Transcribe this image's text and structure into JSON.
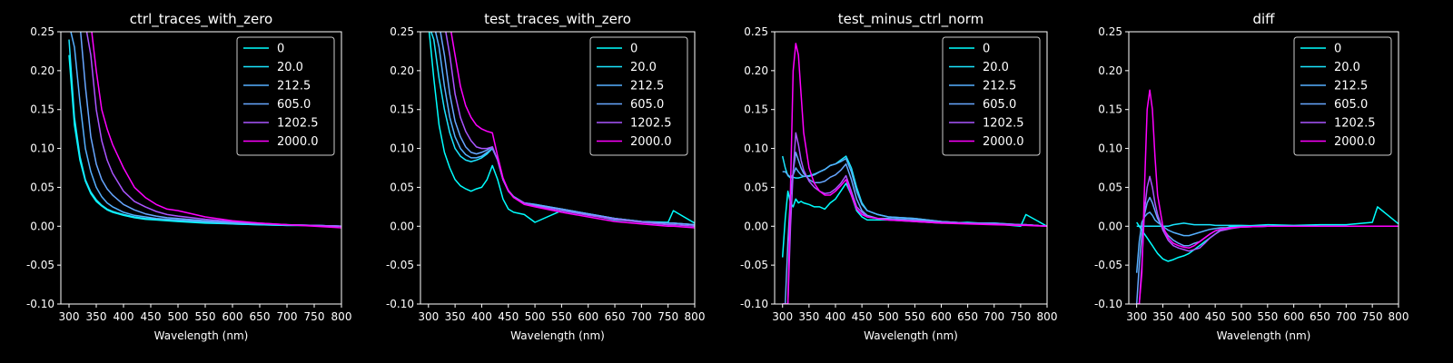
{
  "figure": {
    "background": "#000000",
    "foreground": "#ffffff"
  },
  "legend_labels": [
    "0",
    "20.0",
    "212.5",
    "605.0",
    "1202.5",
    "2000.0"
  ],
  "series_colors": [
    "#00ffff",
    "#1ae5ff",
    "#55b0ff",
    "#67a6ff",
    "#aa55ff",
    "#ff00ff"
  ],
  "chart_data": [
    {
      "type": "line",
      "title": "ctrl_traces_with_zero",
      "xlabel": "Wavelength (nm)",
      "ylabel": "",
      "xlim": [
        285,
        800
      ],
      "ylim": [
        -0.1,
        0.25
      ],
      "xticks": [
        300,
        350,
        400,
        450,
        500,
        550,
        600,
        650,
        700,
        750,
        800
      ],
      "yticks": [
        -0.1,
        -0.05,
        0.0,
        0.05,
        0.1,
        0.15,
        0.2,
        0.25
      ],
      "legend_position": "top-right",
      "x": [
        300,
        310,
        320,
        330,
        340,
        350,
        360,
        370,
        380,
        400,
        420,
        440,
        460,
        480,
        500,
        550,
        600,
        650,
        700,
        750,
        800
      ],
      "series": [
        {
          "name": "0",
          "values": [
            0.22,
            0.13,
            0.085,
            0.058,
            0.042,
            0.032,
            0.026,
            0.021,
            0.018,
            0.014,
            0.011,
            0.009,
            0.008,
            0.007,
            0.006,
            0.004,
            0.003,
            0.002,
            0.001,
            0.001,
            0.0
          ]
        },
        {
          "name": "20.0",
          "values": [
            0.24,
            0.14,
            0.09,
            0.06,
            0.044,
            0.034,
            0.027,
            0.022,
            0.019,
            0.015,
            0.012,
            0.01,
            0.009,
            0.008,
            0.007,
            0.005,
            0.003,
            0.002,
            0.001,
            0.001,
            0.0
          ]
        },
        {
          "name": "212.5",
          "values": [
            0.26,
            0.23,
            0.16,
            0.1,
            0.07,
            0.05,
            0.038,
            0.03,
            0.025,
            0.018,
            0.014,
            0.012,
            0.01,
            0.009,
            0.008,
            0.006,
            0.004,
            0.003,
            0.002,
            0.001,
            0.0
          ]
        },
        {
          "name": "605.0",
          "values": [
            0.26,
            0.26,
            0.26,
            0.18,
            0.115,
            0.08,
            0.06,
            0.048,
            0.04,
            0.028,
            0.021,
            0.016,
            0.013,
            0.011,
            0.01,
            0.007,
            0.005,
            0.003,
            0.002,
            0.001,
            0.0
          ]
        },
        {
          "name": "1202.5",
          "values": [
            0.26,
            0.26,
            0.26,
            0.26,
            0.22,
            0.15,
            0.11,
            0.085,
            0.068,
            0.045,
            0.032,
            0.025,
            0.019,
            0.015,
            0.013,
            0.009,
            0.006,
            0.004,
            0.002,
            0.001,
            0.0
          ]
        },
        {
          "name": "2000.0",
          "values": [
            0.26,
            0.26,
            0.26,
            0.26,
            0.26,
            0.2,
            0.15,
            0.125,
            0.105,
            0.075,
            0.05,
            0.037,
            0.028,
            0.022,
            0.02,
            0.012,
            0.007,
            0.004,
            0.002,
            0.0,
            -0.002
          ]
        }
      ]
    },
    {
      "type": "line",
      "title": "test_traces_with_zero",
      "xlabel": "Wavelength (nm)",
      "ylabel": "",
      "xlim": [
        285,
        800
      ],
      "ylim": [
        -0.1,
        0.25
      ],
      "xticks": [
        300,
        350,
        400,
        450,
        500,
        550,
        600,
        650,
        700,
        750,
        800
      ],
      "yticks": [
        -0.1,
        -0.05,
        0.0,
        0.05,
        0.1,
        0.15,
        0.2,
        0.25
      ],
      "legend_position": "top-right",
      "x": [
        300,
        310,
        320,
        330,
        340,
        350,
        360,
        370,
        380,
        390,
        400,
        410,
        420,
        430,
        440,
        450,
        460,
        480,
        500,
        550,
        600,
        650,
        700,
        750,
        760,
        800
      ],
      "series": [
        {
          "name": "0",
          "values": [
            0.26,
            0.19,
            0.13,
            0.095,
            0.075,
            0.06,
            0.052,
            0.048,
            0.045,
            0.048,
            0.05,
            0.06,
            0.078,
            0.06,
            0.035,
            0.022,
            0.018,
            0.015,
            0.005,
            0.02,
            0.015,
            0.008,
            0.006,
            0.005,
            0.02,
            0.004
          ]
        },
        {
          "name": "20.0",
          "values": [
            0.26,
            0.24,
            0.19,
            0.15,
            0.12,
            0.1,
            0.09,
            0.085,
            0.083,
            0.085,
            0.088,
            0.093,
            0.1,
            0.085,
            0.06,
            0.045,
            0.038,
            0.03,
            0.028,
            0.022,
            0.016,
            0.01,
            0.006,
            0.004,
            0.004,
            0.002
          ]
        },
        {
          "name": "212.5",
          "values": [
            0.26,
            0.26,
            0.23,
            0.18,
            0.14,
            0.115,
            0.1,
            0.092,
            0.088,
            0.088,
            0.09,
            0.095,
            0.1,
            0.085,
            0.06,
            0.046,
            0.038,
            0.03,
            0.028,
            0.022,
            0.016,
            0.01,
            0.006,
            0.004,
            0.004,
            0.002
          ]
        },
        {
          "name": "605.0",
          "values": [
            0.26,
            0.26,
            0.26,
            0.22,
            0.17,
            0.135,
            0.115,
            0.102,
            0.095,
            0.093,
            0.095,
            0.098,
            0.102,
            0.085,
            0.06,
            0.046,
            0.038,
            0.03,
            0.027,
            0.022,
            0.016,
            0.01,
            0.006,
            0.004,
            0.004,
            0.002
          ]
        },
        {
          "name": "1202.5",
          "values": [
            0.26,
            0.26,
            0.26,
            0.26,
            0.22,
            0.17,
            0.14,
            0.122,
            0.11,
            0.102,
            0.1,
            0.1,
            0.102,
            0.085,
            0.06,
            0.045,
            0.037,
            0.03,
            0.026,
            0.02,
            0.014,
            0.009,
            0.005,
            0.002,
            0.002,
            0.0
          ]
        },
        {
          "name": "2000.0",
          "values": [
            0.26,
            0.26,
            0.26,
            0.26,
            0.26,
            0.22,
            0.18,
            0.155,
            0.14,
            0.13,
            0.125,
            0.122,
            0.12,
            0.09,
            0.062,
            0.046,
            0.037,
            0.028,
            0.025,
            0.018,
            0.012,
            0.006,
            0.003,
            0.0,
            0.0,
            -0.002
          ]
        }
      ]
    },
    {
      "type": "line",
      "title": "test_minus_ctrl_norm",
      "xlabel": "Wavelength (nm)",
      "ylabel": "",
      "xlim": [
        285,
        800
      ],
      "ylim": [
        -0.1,
        0.25
      ],
      "xticks": [
        300,
        350,
        400,
        450,
        500,
        550,
        600,
        650,
        700,
        750,
        800
      ],
      "yticks": [
        -0.1,
        -0.05,
        0.0,
        0.05,
        0.1,
        0.15,
        0.2,
        0.25
      ],
      "legend_position": "top-right",
      "x": [
        300,
        305,
        310,
        315,
        320,
        325,
        330,
        335,
        340,
        350,
        360,
        370,
        380,
        390,
        400,
        410,
        420,
        430,
        440,
        450,
        460,
        480,
        500,
        550,
        600,
        650,
        700,
        750,
        760,
        800
      ],
      "series": [
        {
          "name": "0",
          "values": [
            -0.04,
            0.01,
            0.045,
            0.03,
            0.025,
            0.035,
            0.03,
            0.032,
            0.03,
            0.028,
            0.025,
            0.025,
            0.022,
            0.03,
            0.035,
            0.045,
            0.055,
            0.04,
            0.02,
            0.012,
            0.008,
            0.008,
            0.008,
            0.006,
            0.004,
            0.005,
            0.003,
            0.0,
            0.015,
            0.0
          ]
        },
        {
          "name": "20.0",
          "values": [
            0.09,
            0.075,
            0.065,
            0.062,
            0.063,
            0.062,
            0.062,
            0.063,
            0.064,
            0.065,
            0.067,
            0.07,
            0.073,
            0.078,
            0.08,
            0.085,
            0.09,
            0.075,
            0.05,
            0.03,
            0.02,
            0.015,
            0.012,
            0.01,
            0.006,
            0.004,
            0.004,
            0.002,
            0.002,
            0.0
          ]
        },
        {
          "name": "212.5",
          "values": [
            0.07,
            0.07,
            0.066,
            0.063,
            0.066,
            0.075,
            0.07,
            0.066,
            0.064,
            0.064,
            0.066,
            0.07,
            0.073,
            0.078,
            0.08,
            0.083,
            0.087,
            0.07,
            0.045,
            0.028,
            0.02,
            0.015,
            0.012,
            0.01,
            0.006,
            0.004,
            0.004,
            0.002,
            0.002,
            0.0
          ]
        },
        {
          "name": "605.0",
          "values": [
            -0.1,
            -0.1,
            -0.02,
            0.04,
            0.07,
            0.095,
            0.085,
            0.075,
            0.068,
            0.06,
            0.056,
            0.056,
            0.058,
            0.063,
            0.066,
            0.072,
            0.08,
            0.06,
            0.035,
            0.02,
            0.014,
            0.01,
            0.01,
            0.008,
            0.006,
            0.004,
            0.003,
            0.002,
            0.002,
            0.0
          ]
        },
        {
          "name": "1202.5",
          "values": [
            -0.1,
            -0.1,
            -0.1,
            0.0,
            0.07,
            0.12,
            0.105,
            0.085,
            0.072,
            0.058,
            0.05,
            0.045,
            0.042,
            0.043,
            0.048,
            0.055,
            0.065,
            0.045,
            0.025,
            0.018,
            0.012,
            0.01,
            0.008,
            0.007,
            0.005,
            0.004,
            0.003,
            0.002,
            0.002,
            0.0
          ]
        },
        {
          "name": "2000.0",
          "values": [
            -0.1,
            -0.1,
            -0.1,
            0.05,
            0.2,
            0.235,
            0.22,
            0.17,
            0.12,
            0.075,
            0.055,
            0.045,
            0.04,
            0.04,
            0.045,
            0.052,
            0.06,
            0.04,
            0.022,
            0.015,
            0.012,
            0.01,
            0.008,
            0.006,
            0.004,
            0.003,
            0.002,
            0.001,
            0.001,
            0.0
          ]
        }
      ]
    },
    {
      "type": "line",
      "title": "diff",
      "xlabel": "Wavelength (nm)",
      "ylabel": "",
      "xlim": [
        285,
        800
      ],
      "ylim": [
        -0.1,
        0.25
      ],
      "xticks": [
        300,
        350,
        400,
        450,
        500,
        550,
        600,
        650,
        700,
        750,
        800
      ],
      "yticks": [
        -0.1,
        -0.05,
        0.0,
        0.05,
        0.1,
        0.15,
        0.2,
        0.25
      ],
      "legend_position": "top-right",
      "x": [
        300,
        305,
        310,
        315,
        320,
        325,
        330,
        335,
        340,
        350,
        360,
        370,
        380,
        390,
        400,
        410,
        420,
        430,
        440,
        450,
        460,
        480,
        500,
        550,
        600,
        650,
        700,
        750,
        760,
        800
      ],
      "series": [
        {
          "name": "0",
          "values": [
            0.005,
            0.0,
            -0.005,
            -0.01,
            -0.015,
            -0.02,
            -0.025,
            -0.03,
            -0.035,
            -0.042,
            -0.045,
            -0.043,
            -0.04,
            -0.038,
            -0.035,
            -0.03,
            -0.025,
            -0.02,
            -0.015,
            -0.01,
            -0.005,
            0.0,
            0.0,
            0.002,
            0.001,
            0.002,
            0.002,
            0.005,
            0.025,
            0.003
          ]
        },
        {
          "name": "20.0",
          "values": [
            0.0,
            0.0,
            0.0,
            0.0,
            0.0,
            0.0,
            0.0,
            0.0,
            0.0,
            0.0,
            0.0,
            0.002,
            0.003,
            0.004,
            0.003,
            0.002,
            0.002,
            0.002,
            0.002,
            0.001,
            0.001,
            0.001,
            0.001,
            0.0,
            0.0,
            0.0,
            0.0,
            0.0,
            0.0,
            0.0
          ]
        },
        {
          "name": "212.5",
          "values": [
            -0.06,
            -0.02,
            0.005,
            0.012,
            0.016,
            0.018,
            0.014,
            0.008,
            0.005,
            0.0,
            -0.005,
            -0.008,
            -0.01,
            -0.012,
            -0.012,
            -0.01,
            -0.008,
            -0.006,
            -0.004,
            -0.003,
            -0.002,
            -0.002,
            -0.001,
            0.0,
            0.0,
            0.0,
            0.0,
            0.0,
            0.0,
            0.0
          ]
        },
        {
          "name": "605.0",
          "values": [
            -0.1,
            -0.05,
            -0.01,
            0.015,
            0.03,
            0.037,
            0.03,
            0.02,
            0.01,
            -0.003,
            -0.012,
            -0.018,
            -0.022,
            -0.025,
            -0.025,
            -0.022,
            -0.02,
            -0.015,
            -0.01,
            -0.006,
            -0.004,
            -0.002,
            -0.001,
            0.0,
            0.0,
            0.0,
            0.0,
            0.0,
            0.0,
            0.0
          ]
        },
        {
          "name": "1202.5",
          "values": [
            -0.1,
            -0.1,
            -0.05,
            0.02,
            0.05,
            0.064,
            0.05,
            0.03,
            0.015,
            -0.005,
            -0.018,
            -0.025,
            -0.028,
            -0.03,
            -0.032,
            -0.03,
            -0.028,
            -0.022,
            -0.015,
            -0.01,
            -0.006,
            -0.003,
            -0.001,
            0.0,
            0.0,
            0.0,
            0.0,
            0.0,
            0.0,
            0.0
          ]
        },
        {
          "name": "2000.0",
          "values": [
            -0.1,
            -0.1,
            -0.06,
            0.05,
            0.15,
            0.175,
            0.15,
            0.09,
            0.04,
            0.0,
            -0.015,
            -0.022,
            -0.025,
            -0.027,
            -0.028,
            -0.025,
            -0.02,
            -0.015,
            -0.01,
            -0.006,
            -0.004,
            -0.002,
            -0.001,
            0.0,
            0.0,
            0.0,
            0.0,
            0.0,
            0.0,
            0.0
          ]
        }
      ]
    }
  ]
}
